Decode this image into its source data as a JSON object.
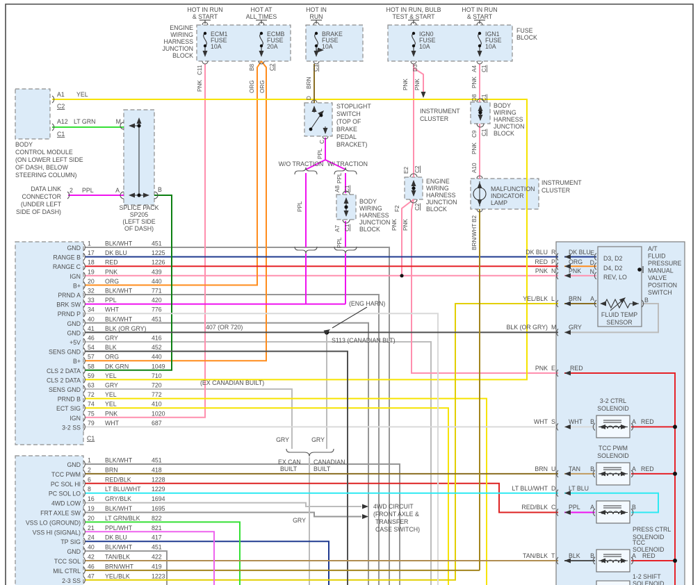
{
  "fuses": {
    "jb_label": [
      "ENGINE",
      "WIRING",
      "HARNESS",
      "JUNCTION",
      "BLOCK"
    ],
    "fb_label": [
      "FUSE",
      "BLOCK"
    ],
    "items": [
      {
        "hot": [
          "HOT IN RUN",
          "& START"
        ],
        "name": [
          "ECM1",
          "FUSE",
          "10A"
        ]
      },
      {
        "hot": [
          "HOT AT",
          "ALL TIMES"
        ],
        "name": [
          "ECMB",
          "FUSE",
          "20A"
        ]
      },
      {
        "hot": [
          "HOT IN",
          "RUN"
        ],
        "name": [
          "BRAKE",
          "FUSE",
          "10A"
        ]
      },
      {
        "hot": [
          "HOT IN RUN, BULB",
          "TEST & START"
        ],
        "name": [
          "IGN0",
          "FUSE",
          "10A"
        ]
      },
      {
        "hot": [
          "HOT IN RUN",
          "& START"
        ],
        "name": [
          "IGN1",
          "FUSE",
          "10A"
        ]
      }
    ]
  },
  "bcm": {
    "label": [
      "BODY",
      "CONTROL MODULE",
      "(ON LOWER LEFT SIDE",
      "OF DASH, BELOW",
      "STEERING COLUMN)"
    ],
    "a1": "A1",
    "a1_color": "YEL",
    "a1_conn": "C2",
    "a12": "A12",
    "a12_color": "LT GRN",
    "a12_conn": "C1"
  },
  "splice": {
    "label": [
      "SPLICE PACK",
      "SP205",
      "(LEFT SIDE",
      "OF DASH)"
    ],
    "m": "M",
    "a": "A",
    "b": "B"
  },
  "dlc": {
    "label": [
      "DATA LINK",
      "CONNECTOR",
      "(UNDER LEFT",
      "SIDE OF DASH)"
    ],
    "pin": "2",
    "color": "PPL"
  },
  "stop": {
    "label": [
      "STOPLIGHT",
      "SWITCH",
      "(TOP OF",
      "BRAKE",
      "PEDAL",
      "BRACKET)"
    ]
  },
  "traction": {
    "wo": "W/O TRACTION",
    "w": "W/ TRACTION"
  },
  "jb": {
    "body": [
      "BODY",
      "WIRING",
      "HARNESS",
      "JUNCTION",
      "BLOCK"
    ],
    "engine": [
      "ENGINE",
      "WIRING",
      "HARNESS",
      "JUNCTION",
      "BLOCK"
    ]
  },
  "cluster": [
    "INSTRUMENT",
    "CLUSTER"
  ],
  "mil": [
    "MALFUNCTION",
    "INDICATOR",
    "LAMP"
  ],
  "tags": {
    "c11": "C11",
    "pnk1": "PNK",
    "b8": "B8",
    "org1": "ORG",
    "org2": "ORG",
    "c2a": "C2",
    "c1a": "C1",
    "brn1": "BRN",
    "d1": "D",
    "d3": "D3",
    "pnk2": "PNK",
    "pnk3": "PNK",
    "e2": "E2",
    "c2b": "C2",
    "f2": "F2",
    "c2c": "C2",
    "pnk4": "PNK",
    "pnk5": "PNK",
    "a4": "A4",
    "c1b": "C1",
    "pnk6": "PNK",
    "d8": "D8",
    "c1c": "C1",
    "c9": "C9",
    "c1d": "C1",
    "pnk7": "PNK",
    "a10": "A10",
    "b2": "B2",
    "brnwht": "BRN/WHT",
    "c_sw": "C",
    "ppl1": "PPL",
    "ppl2": "PPL",
    "ppl3": "PPL",
    "ppl4": "PPL",
    "a8": "A8",
    "c1e": "C1",
    "a7": "A7",
    "c1f": "C1"
  },
  "notes": {
    "n407": "407 (OR 720)",
    "s113": "S113 (CANADIAN BLT)",
    "eng_harn": "(ENG HARN)",
    "ex_can": "(EX CANADIAN BUILT)",
    "gry1": "GRY",
    "gry2": "GRY",
    "gry3": "GRY",
    "ex_can_built": [
      "EX CAN",
      "BUILT"
    ],
    "canadian_built": [
      "CANADIAN",
      "BUILT"
    ],
    "awd": [
      "4WD CIRCUIT",
      "(FRONT AXLE &",
      "TRANSFER",
      "CASE SWITCH)"
    ]
  },
  "c1": {
    "label": "C1",
    "rows": [
      {
        "sig": "GND",
        "pin": "1",
        "clr": "BLK/WHT",
        "ckt": "451"
      },
      {
        "sig": "RANGE B",
        "pin": "17",
        "clr": "DK BLU",
        "ckt": "1225"
      },
      {
        "sig": "RANGE C",
        "pin": "18",
        "clr": "RED",
        "ckt": "1226"
      },
      {
        "sig": "IGN",
        "pin": "19",
        "clr": "PNK",
        "ckt": "439"
      },
      {
        "sig": "B+",
        "pin": "20",
        "clr": "ORG",
        "ckt": "440"
      },
      {
        "sig": "PRND A",
        "pin": "32",
        "clr": "BLK/WHT",
        "ckt": "771"
      },
      {
        "sig": "BRK SW",
        "pin": "33",
        "clr": "PPL",
        "ckt": "420"
      },
      {
        "sig": "PRND P",
        "pin": "34",
        "clr": "WHT",
        "ckt": "776"
      },
      {
        "sig": "GND",
        "pin": "40",
        "clr": "BLK/WHT",
        "ckt": "451"
      },
      {
        "sig": "GND",
        "pin": "41",
        "clr": "BLK (OR GRY)",
        "ckt": ""
      },
      {
        "sig": "+5V",
        "pin": "46",
        "clr": "GRY",
        "ckt": "416"
      },
      {
        "sig": "SENS GND",
        "pin": "54",
        "clr": "BLK",
        "ckt": "452"
      },
      {
        "sig": "B+",
        "pin": "57",
        "clr": "ORG",
        "ckt": "440"
      },
      {
        "sig": "CLS 2 DATA",
        "pin": "58",
        "clr": "DK GRN",
        "ckt": "1049"
      },
      {
        "sig": "CLS 2 DATA",
        "pin": "59",
        "clr": "YEL",
        "ckt": "710"
      },
      {
        "sig": "SENS GND",
        "pin": "63",
        "clr": "GRY",
        "ckt": "720"
      },
      {
        "sig": "PRND B",
        "pin": "72",
        "clr": "YEL",
        "ckt": "772"
      },
      {
        "sig": "ECT SIG",
        "pin": "74",
        "clr": "YEL",
        "ckt": "410"
      },
      {
        "sig": "IGN",
        "pin": "75",
        "clr": "PNK",
        "ckt": "1020"
      },
      {
        "sig": "3-2 SS",
        "pin": "79",
        "clr": "WHT",
        "ckt": "687"
      }
    ]
  },
  "c2": {
    "rows": [
      {
        "sig": "GND",
        "pin": "1",
        "clr": "BLK/WHT",
        "ckt": "451"
      },
      {
        "sig": "TCC PWM",
        "pin": "2",
        "clr": "BRN",
        "ckt": "418"
      },
      {
        "sig": "PC SOL HI",
        "pin": "6",
        "clr": "RED/BLK",
        "ckt": "1228"
      },
      {
        "sig": "PC SOL LO",
        "pin": "8",
        "clr": "LT BLU/WHT",
        "ckt": "1229"
      },
      {
        "sig": "4WD LOW",
        "pin": "16",
        "clr": "GRY/BLK",
        "ckt": "1694"
      },
      {
        "sig": "FRT AXLE SW",
        "pin": "19",
        "clr": "BLK/WHT",
        "ckt": "1695"
      },
      {
        "sig": "VSS LO (GROUND)",
        "pin": "20",
        "clr": "LT GRN/BLK",
        "ckt": "822"
      },
      {
        "sig": "VSS HI (SIGNAL)",
        "pin": "21",
        "clr": "PPL/WHT",
        "ckt": "821"
      },
      {
        "sig": "TP SIG",
        "pin": "24",
        "clr": "DK BLU",
        "ckt": "417"
      },
      {
        "sig": "GND",
        "pin": "40",
        "clr": "BLK/WHT",
        "ckt": "451"
      },
      {
        "sig": "TCC SOL",
        "pin": "42",
        "clr": "TAN/BLK",
        "ckt": "422"
      },
      {
        "sig": "MIL CTRL",
        "pin": "46",
        "clr": "BRN/WHT",
        "ckt": "419"
      },
      {
        "sig": "2-3 SS",
        "pin": "47",
        "clr": "YEL/BLK",
        "ckt": "1223"
      }
    ]
  },
  "trans": {
    "title": [
      "A/T",
      "FLUID",
      "PRESSURE",
      "MANUAL",
      "VALVE",
      "POSITION",
      "SWITCH"
    ],
    "rows": {
      "r": {
        "out": "DK BLU",
        "ltr": "R",
        "in": "DK BLU",
        "pin": "E",
        "mode": "D3, D2"
      },
      "p": {
        "out": "RED",
        "ltr": "P",
        "in": "ORG",
        "pin": "D",
        "mode": "D4, D2"
      },
      "n": {
        "out": "PNK",
        "ltr": "N",
        "in": "PNK",
        "pin": "N",
        "mode": "REV, LO"
      },
      "l": {
        "out": "YEL/BLK",
        "ltr": "L",
        "in": "BRN",
        "pin": "A"
      },
      "m": {
        "out": "BLK (OR GRY)",
        "ltr": "M",
        "in": "GRY"
      },
      "e": {
        "out": "PNK",
        "ltr": "E",
        "in": "RED"
      },
      "s": {
        "out": "WHT",
        "ltr": "S",
        "in": "WHT",
        "b": "B",
        "a": "A",
        "red": "RED"
      },
      "u": {
        "out": "BRN",
        "ltr": "U",
        "in": "TAN",
        "b": "B",
        "a": "A",
        "red": "RED"
      },
      "d": {
        "out": "LT BLU/WHT",
        "ltr": "D",
        "in": "LT BLU"
      },
      "c": {
        "out": "RED/BLK",
        "ltr": "C",
        "in": "PPL",
        "b": "A",
        "a": "B"
      },
      "t": {
        "out": "TAN/BLK",
        "ltr": "T",
        "in": "BLK",
        "b": "B",
        "a": "A",
        "red": "RED"
      }
    },
    "temp_b": "B",
    "sensor": [
      "FLUID TEMP",
      "SENSOR"
    ],
    "sol": {
      "s32": [
        "3-2 CTRL",
        "SOLENOID"
      ],
      "tccpwm": [
        "TCC PWM",
        "SOLENOID"
      ],
      "press": [
        "PRESS CTRL",
        "SOLENOID"
      ],
      "tcc": [
        "TCC",
        "SOLENOID"
      ],
      "shift12": [
        "1-2 SHIFT",
        "SOLENOID"
      ]
    }
  },
  "colors": {
    "pnk": "#ff8fae",
    "red": "#e62228",
    "org": "#ff8c1c",
    "yel": "#f6e300",
    "yel_blk": "#e2cf00",
    "dk_blu": "#1f3a8f",
    "blk": "#4f4f4f",
    "blk_wht": "#969696",
    "gry": "#bcbcbc",
    "wht": "#d9d9d9",
    "ppl": "#ef12ef",
    "ppl_wht": "#ee63ee",
    "dk_grn": "#0c8012",
    "lt_grn": "#35e035",
    "brn": "#8a6d21",
    "brn_wht": "#a3851d",
    "tan": "#c09a5e",
    "tan_blk": "#b08d50",
    "lt_blu": "#2de9f2",
    "red_blk": "#dd2222",
    "box_fill": "#dcebf8"
  }
}
